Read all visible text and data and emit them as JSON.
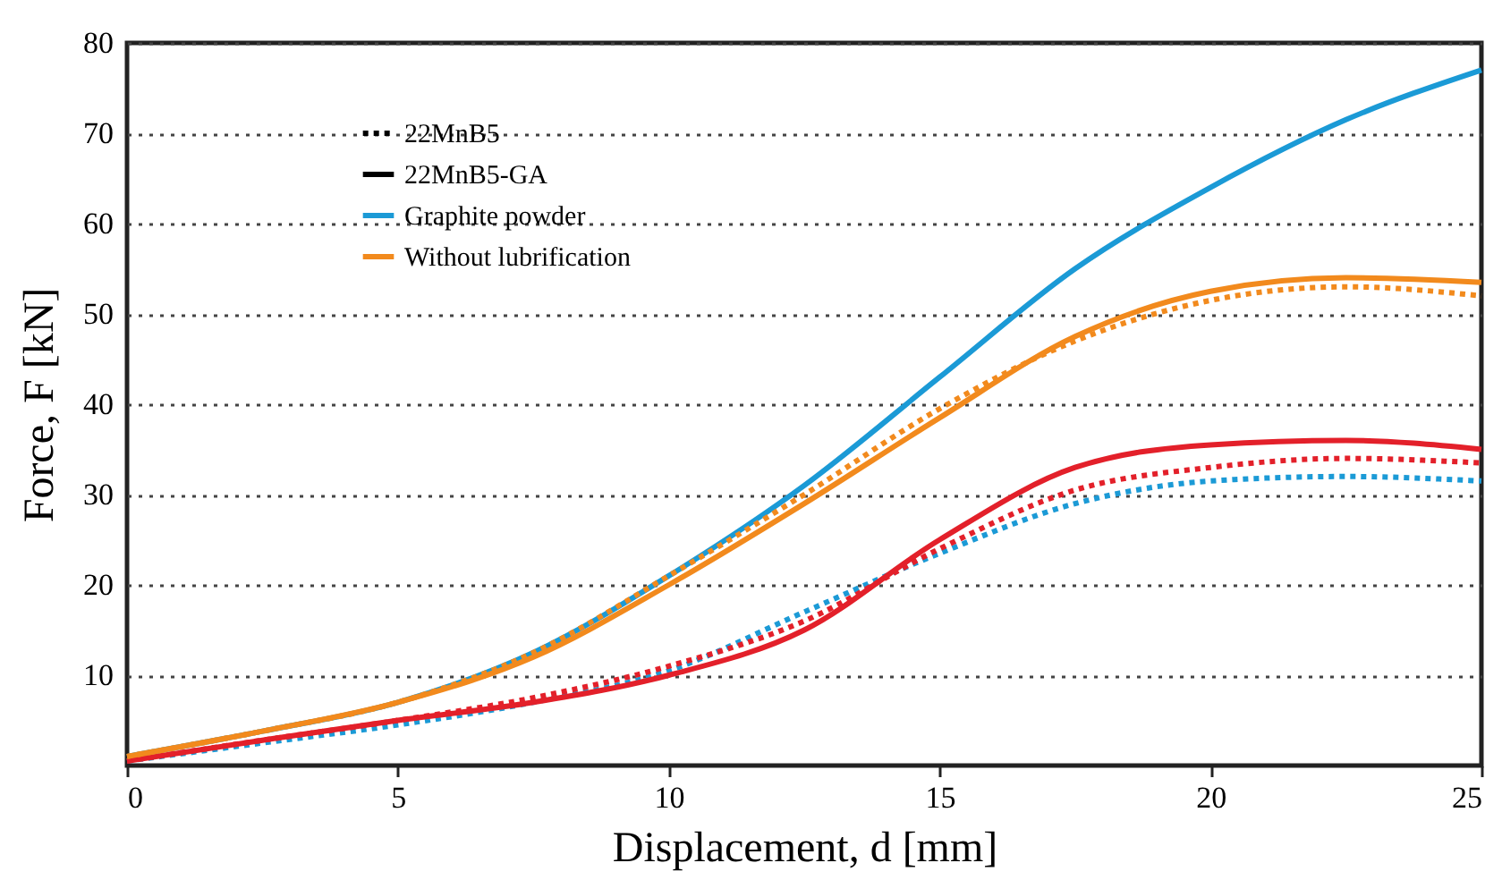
{
  "chart_data": {
    "type": "line",
    "xlabel": "Displacement, d [mm]",
    "ylabel": "Force, F [kN]",
    "x": [
      0,
      2.5,
      5,
      7.5,
      10,
      12.5,
      15,
      17.5,
      20,
      22.5,
      25
    ],
    "xlim": [
      0,
      25
    ],
    "xticks": [
      0,
      5,
      10,
      15,
      20,
      25
    ],
    "ylim": [
      0,
      80
    ],
    "yticks": [
      10,
      20,
      30,
      40,
      50,
      60,
      70,
      80
    ],
    "grid": "y",
    "legend": "top left",
    "marker": "none",
    "annotations": [
      "22MnB5",
      "22MnB5-GA"
    ],
    "series": [
      {
        "name": null,
        "color": "#1b9ad6",
        "line_style": "dotted",
        "values": [
          0.5,
          2.5,
          4.5,
          7,
          10.5,
          17,
          23.5,
          29,
          31.5,
          32,
          31.5
        ]
      },
      {
        "name": "Graphite powder",
        "color": "#1b9ad6",
        "line_style": "solid",
        "values": [
          1,
          3.8,
          7,
          12.5,
          21,
          31,
          43,
          55,
          64,
          71.5,
          77
        ]
      },
      {
        "name": null,
        "color": "#e3202a",
        "line_style": "solid",
        "values": [
          0.5,
          2.8,
          5,
          7,
          10,
          15,
          25,
          33,
          35.5,
          36,
          35
        ]
      },
      {
        "name": null,
        "color": "#e3202a",
        "line_style": "dotted",
        "values": [
          0.5,
          2.8,
          5,
          7.5,
          11,
          16,
          24,
          30.5,
          33,
          34,
          33.5
        ]
      },
      {
        "name": "Without lubrification",
        "color": "#f28a1d",
        "line_style": "solid",
        "values": [
          1,
          3.8,
          7,
          12,
          20,
          29,
          38.5,
          47.5,
          52.5,
          54,
          53.5
        ]
      },
      {
        "name": null,
        "color": "#f28a1d",
        "line_style": "dotted",
        "values": [
          1,
          3.8,
          7,
          12.5,
          21,
          30,
          39.5,
          47,
          51.5,
          53,
          52
        ]
      }
    ]
  }
}
